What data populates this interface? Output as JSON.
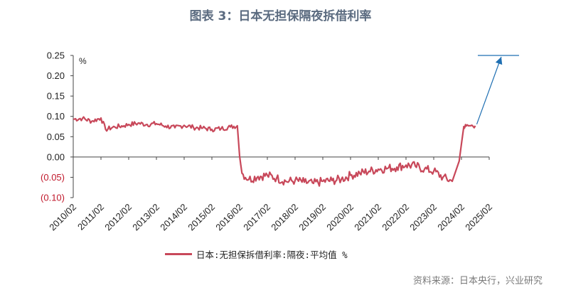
{
  "title": "图表 3：日本无担保隔夜拆借利率",
  "source_note": "资料来源：日本央行，兴业研究",
  "colors": {
    "series": "#c8485a",
    "arrow": "#1f6fb2",
    "title": "#5b6b80",
    "negative_tick": "#c0192c"
  },
  "chart_data": {
    "type": "line",
    "unit_label": "%",
    "ylim": [
      -0.1,
      0.25
    ],
    "y_ticks": [
      "0.25",
      "0.20",
      "0.15",
      "0.10",
      "0.05",
      "0.00",
      "(0.05)",
      "(0.10)"
    ],
    "y_tick_values": [
      0.25,
      0.2,
      0.15,
      0.1,
      0.05,
      0.0,
      -0.05,
      -0.1
    ],
    "x_ticks": [
      "2010/02",
      "2011/02",
      "2012/02",
      "2013/02",
      "2014/02",
      "2015/02",
      "2016/02",
      "2017/02",
      "2018/02",
      "2019/02",
      "2020/02",
      "2021/02",
      "2022/02",
      "2023/02",
      "2024/02",
      "2025/02"
    ],
    "series": [
      {
        "name": "日本:无担保拆借利率:隔夜:平均值 %",
        "x": [
          "2010/02",
          "2010/06",
          "2010/10",
          "2011/02",
          "2011/04",
          "2011/08",
          "2011/12",
          "2012/02",
          "2012/06",
          "2012/10",
          "2013/02",
          "2013/06",
          "2013/10",
          "2014/02",
          "2014/06",
          "2014/10",
          "2015/02",
          "2015/06",
          "2015/10",
          "2016/01",
          "2016/02",
          "2016/03",
          "2016/06",
          "2016/10",
          "2017/02",
          "2017/06",
          "2017/10",
          "2018/02",
          "2018/06",
          "2018/10",
          "2019/02",
          "2019/06",
          "2019/10",
          "2020/02",
          "2020/06",
          "2020/10",
          "2021/02",
          "2021/06",
          "2021/10",
          "2022/02",
          "2022/06",
          "2022/10",
          "2023/02",
          "2023/06",
          "2023/10",
          "2024/01",
          "2024/03",
          "2024/04",
          "2024/06",
          "2024/08"
        ],
        "values": [
          0.093,
          0.095,
          0.088,
          0.096,
          0.068,
          0.074,
          0.077,
          0.08,
          0.083,
          0.08,
          0.082,
          0.076,
          0.072,
          0.078,
          0.073,
          0.071,
          0.068,
          0.07,
          0.074,
          0.077,
          0.002,
          -0.04,
          -0.055,
          -0.048,
          -0.045,
          -0.052,
          -0.06,
          -0.058,
          -0.062,
          -0.065,
          -0.06,
          -0.058,
          -0.055,
          -0.045,
          -0.04,
          -0.035,
          -0.03,
          -0.028,
          -0.025,
          -0.02,
          -0.022,
          -0.03,
          -0.035,
          -0.05,
          -0.06,
          -0.01,
          0.075,
          0.076,
          0.077,
          0.077
        ]
      }
    ],
    "annotation": {
      "type": "arrow",
      "target_value": 0.25
    }
  }
}
